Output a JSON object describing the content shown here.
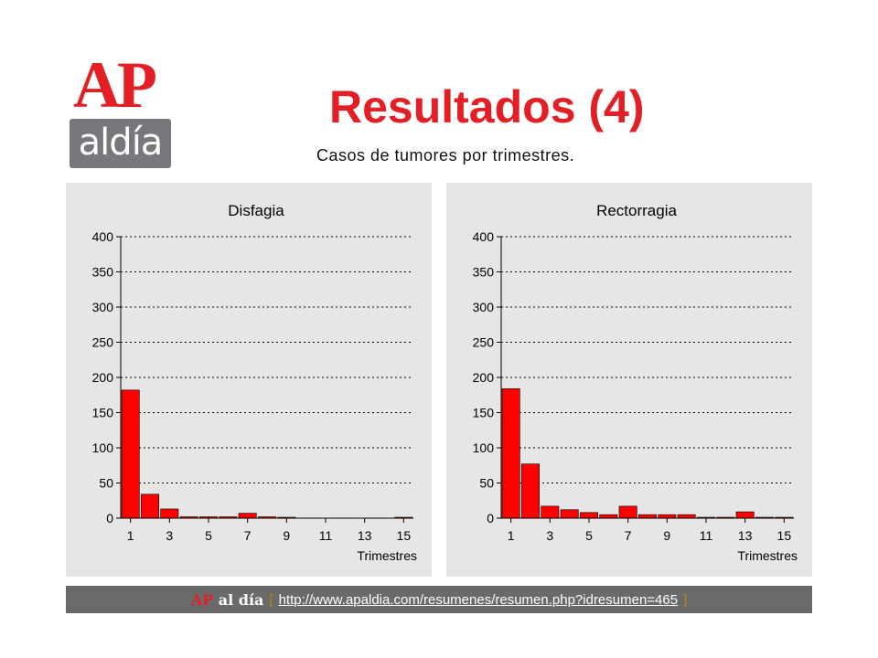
{
  "colors": {
    "accent": "#e31e24",
    "logo_gray": "#77787b",
    "panel_bg": "#e6e6e6",
    "bar": "#ff0000",
    "footer_bg": "#6a6a6a"
  },
  "logo": {
    "top": "AP",
    "bottom": "aldía"
  },
  "header": {
    "title": "Resultados (4)",
    "subtitle": "Casos de tumores por trimestres."
  },
  "chart_data": [
    {
      "type": "bar",
      "title": "Disfagia",
      "xlabel": "Trimestres",
      "ylabel": "",
      "ylim": [
        0,
        400
      ],
      "yticks": [
        0,
        50,
        100,
        150,
        200,
        250,
        300,
        350,
        400
      ],
      "xtick_labels": [
        "1",
        "3",
        "5",
        "7",
        "9",
        "11",
        "13",
        "15"
      ],
      "categories": [
        1,
        2,
        3,
        4,
        5,
        6,
        7,
        8,
        9,
        10,
        11,
        12,
        13,
        14,
        15
      ],
      "values": [
        182,
        34,
        13,
        2,
        2,
        2,
        7,
        2,
        1,
        0,
        0,
        0,
        0,
        0,
        1
      ],
      "grid": true,
      "legend": "none"
    },
    {
      "type": "bar",
      "title": "Rectorragia",
      "xlabel": "Trimestres",
      "ylabel": "",
      "ylim": [
        0,
        400
      ],
      "yticks": [
        0,
        50,
        100,
        150,
        200,
        250,
        300,
        350,
        400
      ],
      "xtick_labels": [
        "1",
        "3",
        "5",
        "7",
        "9",
        "11",
        "13",
        "15"
      ],
      "categories": [
        1,
        2,
        3,
        4,
        5,
        6,
        7,
        8,
        9,
        10,
        11,
        12,
        13,
        14,
        15
      ],
      "values": [
        184,
        77,
        17,
        12,
        8,
        5,
        17,
        5,
        5,
        5,
        1,
        1,
        9,
        1,
        1
      ],
      "grid": true,
      "legend": "none"
    }
  ],
  "footer": {
    "brand_ap": "AP",
    "brand_rest": "al día",
    "bracket_open": "[",
    "url": "http://www.apaldia.com/resumenes/resumen.php?idresumen=465",
    "bracket_close": "]"
  }
}
